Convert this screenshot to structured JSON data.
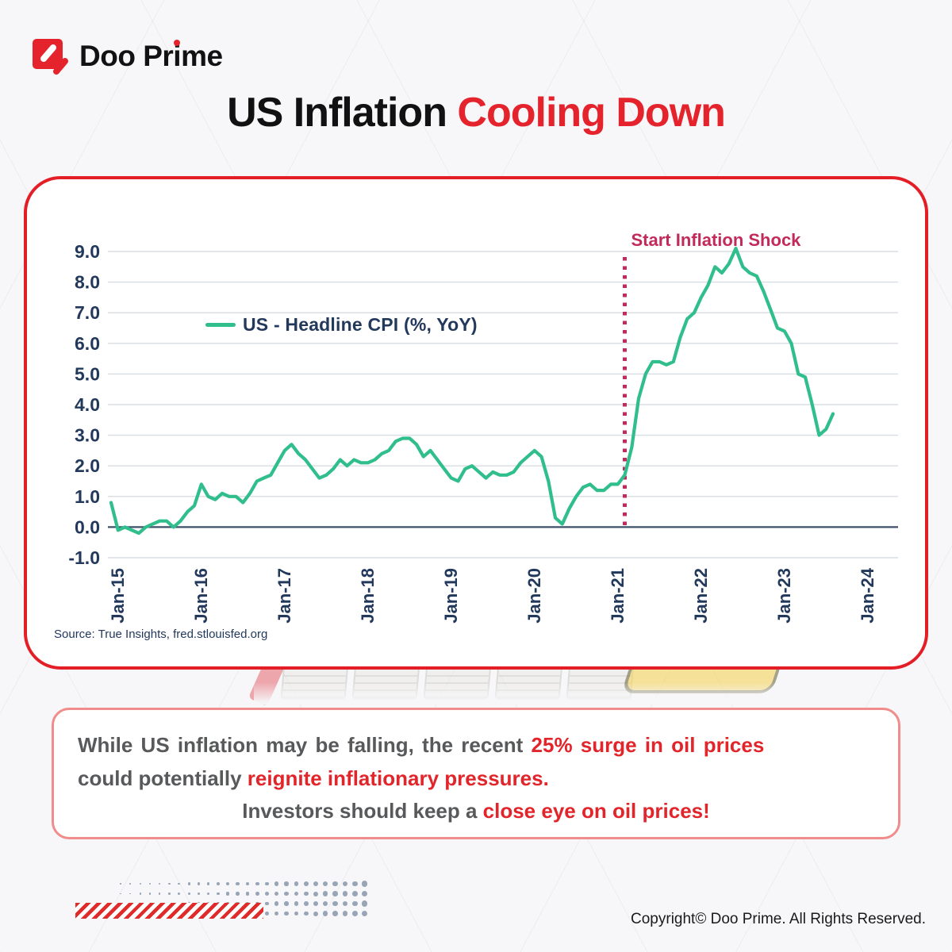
{
  "logo": {
    "word_pre": "Doo Pr",
    "word_i": "i",
    "word_post": "me"
  },
  "title": {
    "black": "US Inflation ",
    "red": "Cooling Down"
  },
  "chart_data": {
    "type": "line",
    "legend": "US - Headline CPI (%, YoY)",
    "legend_position": "upper-left-inside",
    "grid": "horizontal-only",
    "x_start_label": "Dec-14",
    "x_tick_labels": [
      "Jan-15",
      "Jan-16",
      "Jan-17",
      "Jan-18",
      "Jan-19",
      "Jan-20",
      "Jan-21",
      "Jan-22",
      "Jan-23",
      "Jan-24"
    ],
    "x_tick_first_month_index": 1,
    "x_tick_step_months": 12,
    "y_ticks": [
      9,
      8,
      7,
      6,
      5,
      4,
      3,
      2,
      1,
      0,
      -1
    ],
    "ylim": [
      -1.0,
      9.5
    ],
    "series": [
      {
        "name": "US - Headline CPI (%, YoY)",
        "start": "Dec-14",
        "values": [
          0.8,
          -0.1,
          0.0,
          -0.1,
          -0.2,
          0.0,
          0.1,
          0.2,
          0.2,
          0.0,
          0.2,
          0.5,
          0.7,
          1.4,
          1.0,
          0.9,
          1.1,
          1.0,
          1.0,
          0.8,
          1.1,
          1.5,
          1.6,
          1.7,
          2.1,
          2.5,
          2.7,
          2.4,
          2.2,
          1.9,
          1.6,
          1.7,
          1.9,
          2.2,
          2.0,
          2.2,
          2.1,
          2.1,
          2.2,
          2.4,
          2.5,
          2.8,
          2.9,
          2.9,
          2.7,
          2.3,
          2.5,
          2.2,
          1.9,
          1.6,
          1.5,
          1.9,
          2.0,
          1.8,
          1.6,
          1.8,
          1.7,
          1.7,
          1.8,
          2.1,
          2.3,
          2.5,
          2.3,
          1.5,
          0.3,
          0.1,
          0.6,
          1.0,
          1.3,
          1.4,
          1.2,
          1.2,
          1.4,
          1.4,
          1.7,
          2.6,
          4.2,
          5.0,
          5.4,
          5.4,
          5.3,
          5.4,
          6.2,
          6.8,
          7.0,
          7.5,
          7.9,
          8.5,
          8.3,
          8.6,
          9.1,
          8.5,
          8.3,
          8.2,
          7.7,
          7.1,
          6.5,
          6.4,
          6.0,
          5.0,
          4.9,
          4.0,
          3.0,
          3.2,
          3.7
        ]
      }
    ],
    "annotation": {
      "label": "Start Inflation Shock",
      "month_index": 74,
      "style": "dotted-vertical-line"
    },
    "source": "Source: True Insights, fred.stlouisfed.org",
    "colors": {
      "line": "#2FBE8C",
      "annotation": "#C22A5B",
      "axis_text": "#22395C",
      "grid": "#D8DDE3",
      "zero_line": "#3D5068",
      "card_border": "#E41E26"
    }
  },
  "note_box": {
    "line1_gray": "While US inflation may be falling, the recent ",
    "line1_red": "25% surge in oil prices",
    "line2_gray": "could potentially ",
    "line2_red": "reignite inflationary pressures.",
    "line3_gray": "Investors should keep a ",
    "line3_red": "close eye on oil prices!"
  },
  "footer": {
    "copyright": "Copyright© Doo Prime. All Rights Reserved."
  }
}
